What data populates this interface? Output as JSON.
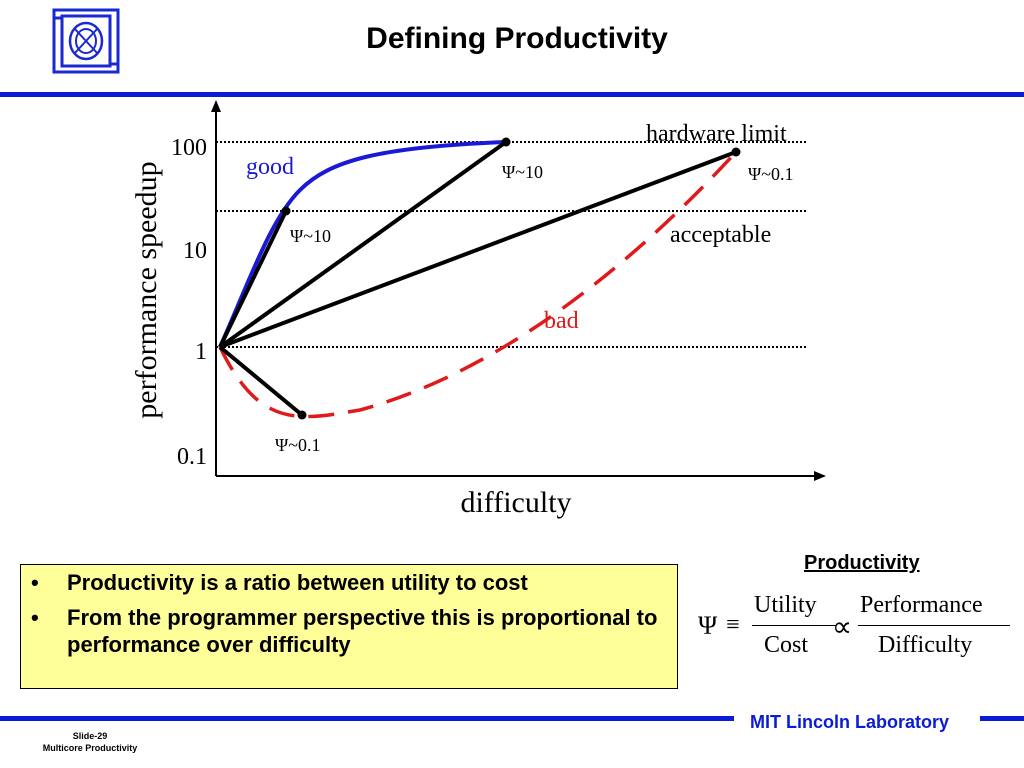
{
  "slide": {
    "title": "Defining Productivity",
    "logo_icon": "mit-ll-logo-icon",
    "footer_org": "MIT Lincoln Laboratory",
    "slide_number": "Slide-29",
    "slide_subtitle": "Multicore Productivity",
    "accent_color": "#0a1cd6"
  },
  "diagram": {
    "y_axis_label": "performance speedup",
    "x_axis_label": "difficulty",
    "y_ticks": [
      "100",
      "10",
      "1",
      "0.1"
    ],
    "labels": {
      "hardware_limit": "hardware limit",
      "good": "good",
      "acceptable": "acceptable",
      "bad": "bad",
      "psi_good_top": "Ψ~10",
      "psi_good_mid": "Ψ~10",
      "psi_far": "Ψ~0.1",
      "psi_bottom": "Ψ~0.1"
    },
    "colors": {
      "good": "#1a1ad6",
      "bad": "#e01a1a",
      "lines": "#000000"
    }
  },
  "bullets": [
    "Productivity is a ratio between utility to cost",
    "From the programmer perspective this is proportional to performance over difficulty"
  ],
  "bullet_glyph": "•",
  "productivity": {
    "heading": "Productivity",
    "psi": "Ψ",
    "equiv": "≡",
    "utility": "Utility",
    "cost": "Cost",
    "proportional": "∝",
    "performance": "Performance",
    "difficulty": "Difficulty"
  }
}
